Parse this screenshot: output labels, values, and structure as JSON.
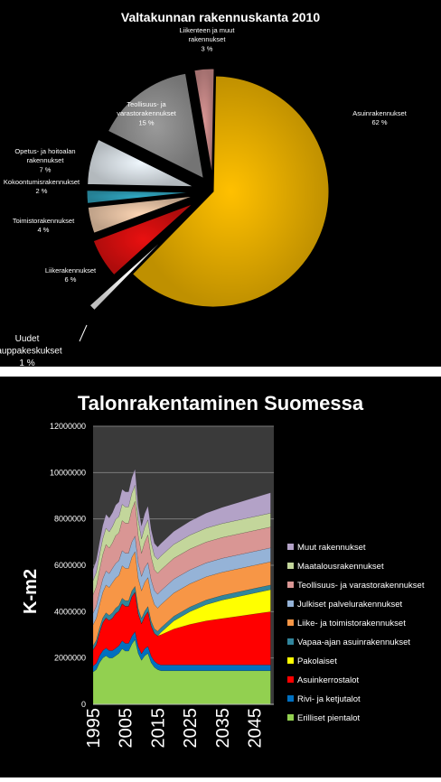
{
  "chart_data": [
    {
      "type": "pie",
      "title": "Valtakunnan rakennuskanta 2010",
      "slices": [
        {
          "label": "Asuinrakennukset",
          "percent_label": "62 %",
          "value": 62,
          "color": "#ffc000",
          "exploded": false
        },
        {
          "label": "Uudet kauppakeskukset",
          "percent_label": "1 %",
          "value": 1,
          "color": "#ffffff",
          "exploded": true
        },
        {
          "label": "Liikerakennukset",
          "percent_label": "6 %",
          "value": 6,
          "color": "#e81010",
          "exploded": true
        },
        {
          "label": "Toimistorakennukset",
          "percent_label": "4 %",
          "value": 4,
          "color": "#fcd5b4",
          "exploded": true
        },
        {
          "label": "Kokoontumisrakennukset",
          "percent_label": "2 %",
          "value": 2,
          "color": "#31a9c4",
          "exploded": true
        },
        {
          "label": "Opetus- ja hoitoalan rakennukset",
          "percent_label": "7 %",
          "value": 7,
          "color": "#eef6fc",
          "exploded": true
        },
        {
          "label": "Teollisuus- ja varastorakennukset",
          "percent_label": "15 %",
          "value": 15,
          "color": "#9a9a9a",
          "exploded": true
        },
        {
          "label": "Liikenteen ja muut rakennukset",
          "percent_label": "3 %",
          "value": 3,
          "color": "#d99594",
          "exploded": true
        }
      ]
    },
    {
      "type": "area",
      "stacked": true,
      "title": "Talonrakentaminen Suomessa",
      "ylabel": "K-m2",
      "ylim": [
        0,
        12000000
      ],
      "yticks": [
        "0",
        "2000000",
        "4000000",
        "6000000",
        "8000000",
        "10000000",
        "12000000"
      ],
      "xlim": [
        1995,
        2051
      ],
      "xticks": [
        "1995",
        "2005",
        "2015",
        "2025",
        "2035",
        "2045"
      ],
      "grid": true,
      "legend_position": "right",
      "x": [
        1995,
        1996,
        1997,
        1998,
        1999,
        2000,
        2001,
        2002,
        2003,
        2004,
        2005,
        2006,
        2007,
        2008,
        2009,
        2010,
        2011,
        2012,
        2013,
        2014,
        2015,
        2016,
        2020,
        2025,
        2030,
        2035,
        2040,
        2045,
        2050
      ],
      "series": [
        {
          "name": "Erilliset pientalot",
          "color": "#92d050",
          "values": [
            1400000,
            1500000,
            1800000,
            2000000,
            2100000,
            2000000,
            2000000,
            2100000,
            2200000,
            2400000,
            2300000,
            2300000,
            2600000,
            2800000,
            2200000,
            1900000,
            2100000,
            2200000,
            1800000,
            1600000,
            1500000,
            1450000,
            1450000,
            1450000,
            1450000,
            1450000,
            1450000,
            1450000,
            1450000
          ]
        },
        {
          "name": "Rivi- ja ketjutalot",
          "color": "#0070c0",
          "values": [
            250000,
            270000,
            300000,
            320000,
            330000,
            320000,
            320000,
            320000,
            330000,
            340000,
            330000,
            330000,
            340000,
            340000,
            300000,
            280000,
            300000,
            300000,
            280000,
            260000,
            250000,
            250000,
            250000,
            250000,
            250000,
            250000,
            250000,
            250000,
            250000
          ]
        },
        {
          "name": "Asuinkerrostalot",
          "color": "#ff0000",
          "values": [
            700000,
            800000,
            1000000,
            1200000,
            1300000,
            1300000,
            1400000,
            1500000,
            1500000,
            1600000,
            1600000,
            1600000,
            1700000,
            1700000,
            1400000,
            1300000,
            1400000,
            1500000,
            1300000,
            1200000,
            1200000,
            1300000,
            1550000,
            1750000,
            1900000,
            2000000,
            2100000,
            2200000,
            2300000
          ]
        },
        {
          "name": "Pakolaiset",
          "color": "#ffff00",
          "values": [
            0,
            0,
            0,
            0,
            0,
            0,
            0,
            0,
            0,
            0,
            0,
            0,
            0,
            0,
            0,
            0,
            0,
            0,
            0,
            0,
            0,
            100000,
            350000,
            550000,
            700000,
            800000,
            850000,
            900000,
            950000
          ]
        },
        {
          "name": "Vapaa-ajan asuinrakennukset",
          "color": "#31859c",
          "values": [
            180000,
            190000,
            200000,
            210000,
            220000,
            220000,
            230000,
            230000,
            230000,
            240000,
            240000,
            240000,
            250000,
            250000,
            230000,
            220000,
            220000,
            220000,
            210000,
            200000,
            200000,
            200000,
            200000,
            200000,
            200000,
            200000,
            200000,
            200000,
            200000
          ]
        },
        {
          "name": "Liike- ja toimistorakennukset",
          "color": "#f79646",
          "values": [
            900000,
            950000,
            1000000,
            1100000,
            1200000,
            1200000,
            1300000,
            1300000,
            1300000,
            1400000,
            1400000,
            1400000,
            1450000,
            1500000,
            1300000,
            1200000,
            1250000,
            1250000,
            1150000,
            1050000,
            1000000,
            1000000,
            1000000,
            1000000,
            1000000,
            1000000,
            1000000,
            1000000,
            1000000
          ]
        },
        {
          "name": "Julkiset palvelurakennukset",
          "color": "#95b3d7",
          "values": [
            500000,
            520000,
            550000,
            580000,
            600000,
            600000,
            620000,
            630000,
            640000,
            650000,
            650000,
            650000,
            660000,
            670000,
            650000,
            620000,
            630000,
            640000,
            620000,
            600000,
            600000,
            600000,
            600000,
            600000,
            600000,
            600000,
            600000,
            600000,
            600000
          ]
        },
        {
          "name": "Teollisuus- ja varastorakennukset",
          "color": "#d99694",
          "values": [
            800000,
            850000,
            950000,
            1050000,
            1150000,
            1100000,
            1100000,
            1200000,
            1200000,
            1300000,
            1300000,
            1300000,
            1400000,
            1500000,
            1200000,
            1000000,
            1100000,
            1200000,
            1000000,
            900000,
            900000,
            900000,
            900000,
            900000,
            900000,
            900000,
            900000,
            900000,
            900000
          ]
        },
        {
          "name": "Maatalousrakennukset",
          "color": "#c3d69b",
          "values": [
            600000,
            620000,
            650000,
            680000,
            700000,
            700000,
            700000,
            700000,
            700000,
            700000,
            700000,
            700000,
            700000,
            700000,
            650000,
            620000,
            650000,
            650000,
            620000,
            600000,
            600000,
            600000,
            600000,
            600000,
            600000,
            600000,
            600000,
            600000,
            600000
          ]
        },
        {
          "name": "Muut rakennukset",
          "color": "#b3a2c7",
          "values": [
            500000,
            520000,
            550000,
            580000,
            600000,
            600000,
            600000,
            620000,
            630000,
            650000,
            650000,
            650000,
            680000,
            700000,
            600000,
            560000,
            580000,
            600000,
            560000,
            540000,
            540000,
            540000,
            560000,
            600000,
            650000,
            700000,
            760000,
            820000,
            880000
          ]
        }
      ]
    }
  ]
}
